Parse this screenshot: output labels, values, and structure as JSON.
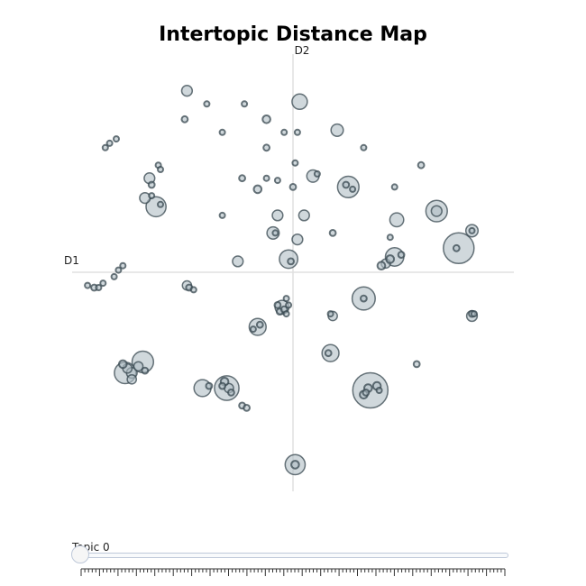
{
  "chart_data": {
    "type": "scatter",
    "title": "Intertopic Distance Map",
    "xlabel": "D1",
    "ylabel": "D2",
    "xlim": [
      -10,
      10
    ],
    "ylim": [
      -10,
      10
    ],
    "grid": false,
    "colors": {
      "fill": "#b0bec5",
      "stroke": "#37474f",
      "axis": "#e0e0e0"
    },
    "points": [
      [
        -4.8,
        8.3,
        0.7
      ],
      [
        -3.9,
        7.7,
        0.3
      ],
      [
        -4.9,
        7.0,
        0.4
      ],
      [
        -2.2,
        7.7,
        0.3
      ],
      [
        -3.2,
        6.4,
        0.3
      ],
      [
        -1.2,
        7.0,
        0.5
      ],
      [
        -0.4,
        6.4,
        0.3
      ],
      [
        0.3,
        7.8,
        1.0
      ],
      [
        0.2,
        6.4,
        0.3
      ],
      [
        2.0,
        6.5,
        0.8
      ],
      [
        3.2,
        5.7,
        0.3
      ],
      [
        5.8,
        4.9,
        0.4
      ],
      [
        -8.0,
        6.1,
        0.3
      ],
      [
        -8.3,
        5.9,
        0.3
      ],
      [
        -8.5,
        5.7,
        0.3
      ],
      [
        -6.1,
        4.9,
        0.3
      ],
      [
        -6.0,
        4.7,
        0.3
      ],
      [
        -2.3,
        4.3,
        0.4
      ],
      [
        -1.2,
        5.7,
        0.4
      ],
      [
        -1.2,
        4.3,
        0.3
      ],
      [
        -0.7,
        4.2,
        0.3
      ],
      [
        0.1,
        5.0,
        0.3
      ],
      [
        -6.5,
        4.3,
        0.7
      ],
      [
        -6.4,
        4.0,
        0.4
      ],
      [
        -1.6,
        3.8,
        0.5
      ],
      [
        0.0,
        3.9,
        0.4
      ],
      [
        0.9,
        4.4,
        0.8
      ],
      [
        1.1,
        4.5,
        0.3
      ],
      [
        2.5,
        3.9,
        1.4
      ],
      [
        2.4,
        4.0,
        0.4
      ],
      [
        2.7,
        3.8,
        0.3
      ],
      [
        4.6,
        3.9,
        0.3
      ],
      [
        -6.7,
        3.4,
        0.7
      ],
      [
        -6.4,
        3.5,
        0.3
      ],
      [
        -6.2,
        3.0,
        1.3
      ],
      [
        -6.0,
        3.1,
        0.3
      ],
      [
        -3.2,
        2.6,
        0.3
      ],
      [
        -0.7,
        2.6,
        0.7
      ],
      [
        0.5,
        2.6,
        0.7
      ],
      [
        4.7,
        2.4,
        0.9
      ],
      [
        6.5,
        2.8,
        1.4
      ],
      [
        6.5,
        2.8,
        0.7
      ],
      [
        -0.9,
        1.8,
        0.8
      ],
      [
        -0.8,
        1.8,
        0.3
      ],
      [
        0.2,
        1.5,
        0.7
      ],
      [
        1.8,
        1.8,
        0.4
      ],
      [
        4.4,
        1.6,
        0.3
      ],
      [
        8.1,
        1.9,
        0.8
      ],
      [
        8.1,
        1.9,
        0.3
      ],
      [
        7.5,
        1.1,
        2.0
      ],
      [
        7.4,
        1.1,
        0.4
      ],
      [
        -2.5,
        0.5,
        0.7
      ],
      [
        -0.2,
        0.6,
        1.2
      ],
      [
        -0.1,
        0.5,
        0.4
      ],
      [
        4.6,
        0.7,
        1.2
      ],
      [
        4.4,
        0.6,
        0.5
      ],
      [
        4.2,
        0.4,
        0.6
      ],
      [
        4.9,
        0.8,
        0.4
      ],
      [
        4.0,
        0.3,
        0.5
      ],
      [
        -7.7,
        0.3,
        0.3
      ],
      [
        -7.9,
        0.1,
        0.3
      ],
      [
        -8.1,
        -0.2,
        0.3
      ],
      [
        -8.6,
        -0.5,
        0.3
      ],
      [
        -8.8,
        -0.7,
        0.3
      ],
      [
        -9.0,
        -0.7,
        0.4
      ],
      [
        -9.3,
        -0.6,
        0.3
      ],
      [
        -4.8,
        -0.6,
        0.6
      ],
      [
        -4.7,
        -0.7,
        0.4
      ],
      [
        -4.5,
        -0.8,
        0.3
      ],
      [
        3.2,
        -1.2,
        1.5
      ],
      [
        3.2,
        -1.2,
        0.4
      ],
      [
        -0.5,
        -1.6,
        0.9
      ],
      [
        -0.3,
        -1.2,
        0.3
      ],
      [
        -0.2,
        -1.5,
        0.3
      ],
      [
        -0.6,
        -1.8,
        0.4
      ],
      [
        -0.7,
        -1.5,
        0.4
      ],
      [
        -0.4,
        -1.7,
        0.4
      ],
      [
        -0.3,
        -1.9,
        0.3
      ],
      [
        1.8,
        -2.0,
        0.6
      ],
      [
        1.7,
        -1.9,
        0.3
      ],
      [
        8.1,
        -2.0,
        0.7
      ],
      [
        8.1,
        -1.9,
        0.4
      ],
      [
        8.2,
        -1.9,
        0.3
      ],
      [
        -1.6,
        -2.5,
        1.1
      ],
      [
        -1.5,
        -2.4,
        0.4
      ],
      [
        -1.8,
        -2.6,
        0.3
      ],
      [
        1.7,
        -3.7,
        1.1
      ],
      [
        1.6,
        -3.7,
        0.4
      ],
      [
        5.6,
        -4.2,
        0.4
      ],
      [
        -7.7,
        -4.2,
        0.5
      ],
      [
        -7.5,
        -4.4,
        0.6
      ],
      [
        -7.3,
        -4.6,
        0.7
      ],
      [
        -7.0,
        -4.3,
        0.6
      ],
      [
        -6.8,
        -4.1,
        1.4
      ],
      [
        -7.6,
        -4.6,
        1.4
      ],
      [
        -7.3,
        -4.9,
        0.6
      ],
      [
        -6.7,
        -4.5,
        0.4
      ],
      [
        -4.1,
        -5.3,
        1.1
      ],
      [
        -3.8,
        -5.2,
        0.4
      ],
      [
        -3.2,
        -5.2,
        0.4
      ],
      [
        -3.0,
        -5.3,
        1.6
      ],
      [
        -2.9,
        -5.3,
        0.6
      ],
      [
        -3.1,
        -5.0,
        0.5
      ],
      [
        -2.8,
        -5.5,
        0.4
      ],
      [
        -2.3,
        -6.1,
        0.4
      ],
      [
        -2.1,
        -6.2,
        0.4
      ],
      [
        3.5,
        -5.4,
        2.3
      ],
      [
        3.4,
        -5.3,
        0.5
      ],
      [
        3.2,
        -5.6,
        0.5
      ],
      [
        3.8,
        -5.2,
        0.5
      ],
      [
        3.9,
        -5.4,
        0.3
      ],
      [
        3.3,
        -5.5,
        0.4
      ],
      [
        0.1,
        -8.8,
        1.3
      ],
      [
        0.1,
        -8.8,
        0.5
      ]
    ],
    "slider": {
      "label": "Topic 0",
      "value": 0,
      "min": 0,
      "max": 115
    }
  }
}
